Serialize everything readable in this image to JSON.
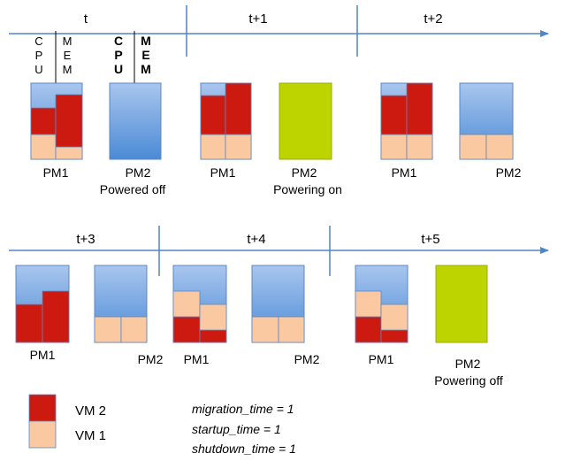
{
  "colors": {
    "timeline": "#4f86c6",
    "vm2": "#cc1a11",
    "vm1": "#fac9a1",
    "pm_top": "#a9c6ee",
    "pm_bottom": "#4a8ad6",
    "pm_on": "#bdd401",
    "pm_border": "#5b87c2",
    "text": "#000000"
  },
  "timeline1": {
    "labels": [
      "t",
      "t+1",
      "t+2"
    ]
  },
  "timeline2": {
    "labels": [
      "t+3",
      "t+4",
      "t+5"
    ]
  },
  "axis_labels": {
    "cpu_small": [
      "C",
      "P",
      "U"
    ],
    "mem_small": [
      "M",
      "E",
      "M"
    ],
    "cpu_bold": [
      "C",
      "P",
      "U"
    ],
    "mem_bold": [
      "M",
      "E",
      "M"
    ]
  },
  "pm_labels": {
    "t_pm1": "PM1",
    "t_pm2": "PM2",
    "t_pm2_status": "Powered off",
    "t1_pm1": "PM1",
    "t1_pm2": "PM2",
    "t1_pm2_status": "Powering on",
    "t2_pm1": "PM1",
    "t2_pm2": "PM2",
    "t3_pm1": "PM1",
    "t3_pm2": "PM2",
    "t4_pm1": "PM1",
    "t4_pm2": "PM2",
    "t5_pm1": "PM1",
    "t5_pm2": "PM2",
    "t5_pm2_status": "Powering off"
  },
  "legend": [
    {
      "label": "VM 2",
      "color_key": "vm2"
    },
    {
      "label": "VM 1",
      "color_key": "vm1"
    }
  ],
  "parameters": [
    "migration_time = 1",
    "startup_time = 1",
    "shutdown_time = 1"
  ]
}
